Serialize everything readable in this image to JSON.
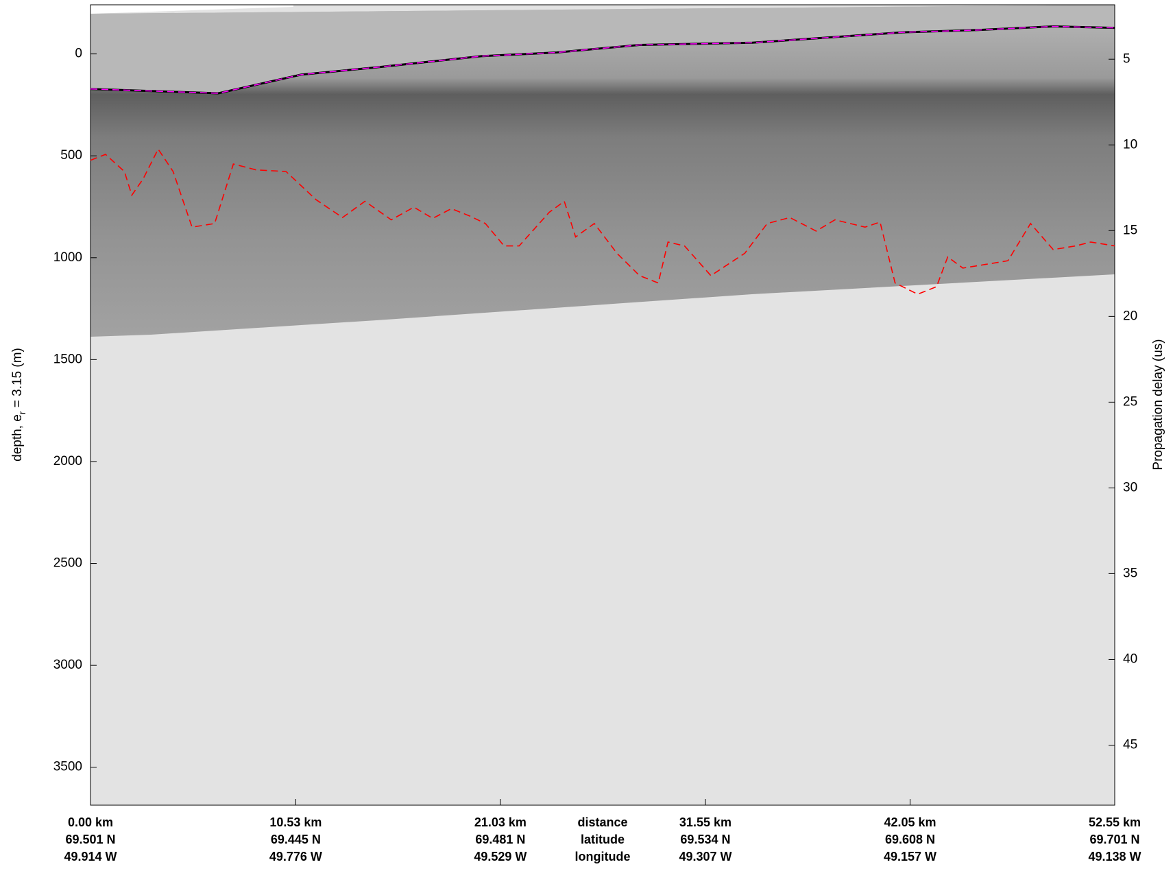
{
  "chart_data": {
    "type": "line",
    "ylabel": {
      "text": "depth, e",
      "subscript": "r",
      "suffix": " = 3.15 (m)"
    },
    "y2label": "Propagation delay (us)",
    "xlim": [
      0,
      52.55
    ],
    "ylim": [
      -241,
      3686
    ],
    "y_inverted": true,
    "yticks": [
      0,
      500,
      1000,
      1500,
      2000,
      2500,
      3000,
      3500
    ],
    "y2lim": [
      1.83,
      48.5
    ],
    "y2ticks": [
      5,
      10,
      15,
      20,
      25,
      30,
      35,
      40,
      45
    ],
    "xticks": [
      {
        "value": 0,
        "label": "0.00 km"
      },
      {
        "value": 10.53,
        "label": "10.53 km"
      },
      {
        "value": 21.03,
        "label": "21.03 km"
      },
      {
        "value": 31.55,
        "label": "31.55 km"
      },
      {
        "value": 42.05,
        "label": "42.05 km"
      },
      {
        "value": 52.55,
        "label": "52.55 km"
      }
    ],
    "latitude_labels": [
      "69.501 N",
      "69.445 N",
      "69.481 N",
      "69.534 N",
      "69.608 N",
      "69.701 N"
    ],
    "longitude_labels": [
      "49.914 W",
      "49.776 W",
      "49.529 W",
      "49.307 W",
      "49.157 W",
      "49.138 W"
    ],
    "x_row_labels": [
      "distance",
      "latitude",
      "longitude"
    ],
    "series": [
      {
        "color": "#ff00ff",
        "dashed": true,
        "x": [
          0,
          6.56,
          10.8,
          14.66,
          20.06,
          23.92,
          28.17,
          33.95,
          37.81,
          41.67,
          45.53,
          49.39,
          52.55
        ],
        "values": [
          172,
          193,
          102,
          66,
          11,
          -7,
          -44,
          -55,
          -80,
          -106,
          -117,
          -135,
          -128
        ]
      },
      {
        "color": "#ff0000",
        "dashed": true,
        "x": [
          0,
          0.77,
          1.74,
          2.12,
          2.7,
          3.47,
          4.24,
          5.21,
          6.37,
          7.33,
          8.49,
          10.03,
          11.57,
          12.93,
          14.08,
          15.43,
          16.59,
          17.56,
          18.52,
          19.48,
          20.26,
          21.22,
          21.99,
          23.54,
          24.31,
          24.89,
          25.85,
          27.01,
          28.17,
          29.13,
          29.63,
          30.48,
          31.83,
          33.57,
          34.72,
          35.88,
          37.23,
          38.2,
          39.74,
          40.51,
          41.28,
          42.44,
          43.41,
          43.98,
          44.76,
          45.91,
          47.07,
          48.23,
          49.39,
          50.54,
          51.32,
          52.55
        ],
        "values": [
          522,
          493,
          577,
          693,
          613,
          467,
          577,
          850,
          832,
          540,
          569,
          577,
          715,
          803,
          723,
          814,
          752,
          807,
          759,
          796,
          832,
          942,
          942,
          777,
          723,
          898,
          832,
          978,
          1088,
          1124,
          923,
          942,
          1088,
          978,
          832,
          803,
          869,
          814,
          850,
          825,
          1124,
          1179,
          1142,
          996,
          1051,
          1033,
          1015,
          832,
          960,
          942,
          923,
          942
        ]
      }
    ]
  }
}
